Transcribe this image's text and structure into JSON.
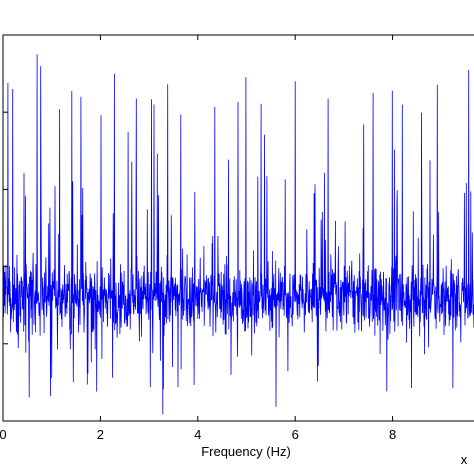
{
  "chart_data": {
    "type": "line",
    "xlabel": "Frequency (Hz)",
    "x_multiplier_label": "x",
    "xlim": [
      0,
      10
    ],
    "x_ticks": [
      0,
      2,
      4,
      6,
      8
    ],
    "x_tick_labels": [
      "0",
      "2",
      "4",
      "6",
      "8"
    ],
    "ylim": [
      0,
      1
    ],
    "y_tick_values": [
      0.2,
      0.4,
      0.6,
      0.8
    ],
    "grid": false,
    "series": [
      {
        "color": "#0000ff",
        "description": "dense noisy spectrum",
        "mean": 0.32,
        "spread": 0.09,
        "spike_max": 0.96,
        "floor": 0.0
      }
    ],
    "visible_peaks": [
      {
        "x": 0.7,
        "y": 0.95
      },
      {
        "x": 0.2,
        "y": 0.86
      },
      {
        "x": 1.6,
        "y": 0.84
      },
      {
        "x": 3.1,
        "y": 0.82
      },
      {
        "x": 6.0,
        "y": 0.88
      },
      {
        "x": 7.6,
        "y": 0.85
      },
      {
        "x": 8.2,
        "y": 0.82
      }
    ]
  }
}
